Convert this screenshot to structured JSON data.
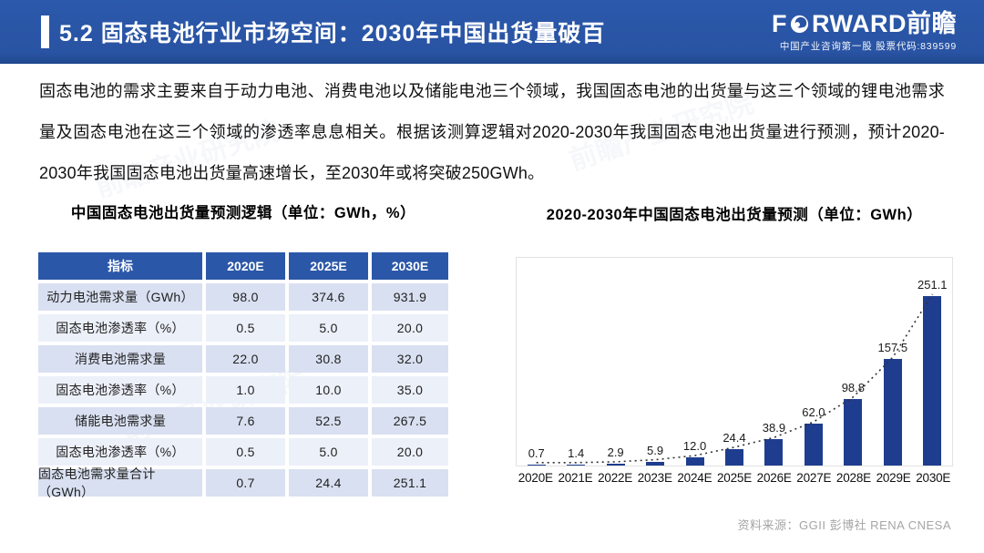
{
  "header": {
    "title": "5.2 固态电池行业市场空间：2030年中国出货量破百",
    "logo": {
      "prefix": "F",
      "suffix": "RWARD前瞻",
      "subtitle": "中国产业咨询第一股 股票代码:839599"
    },
    "bar_blue": "#2953A3"
  },
  "intro": "固态电池的需求主要来自于动力电池、消费电池以及储能电池三个领域，我国固态电池的出货量与这三个领域的锂电池需求量及固态电池在这三个领域的渗透率息息相关。根据该测算逻辑对2020-2030年我国固态电池出货量进行预测，预计2020-2030年我国固态电池出货量高速增长，至2030年或将突破250GWh。",
  "table": {
    "title": "中国固态电池出货量预测逻辑（单位：GWh，%）",
    "headers": [
      "指标",
      "2020E",
      "2025E",
      "2030E"
    ],
    "rows": [
      [
        "动力电池需求量（GWh）",
        "98.0",
        "374.6",
        "931.9"
      ],
      [
        "固态电池渗透率（%）",
        "0.5",
        "5.0",
        "20.0"
      ],
      [
        "消费电池需求量",
        "22.0",
        "30.8",
        "32.0"
      ],
      [
        "固态电池渗透率（%）",
        "1.0",
        "10.0",
        "35.0"
      ],
      [
        "储能电池需求量",
        "7.6",
        "52.5",
        "267.5"
      ],
      [
        "固态电池渗透率（%）",
        "0.5",
        "5.0",
        "20.0"
      ],
      [
        "固态电池需求量合计（GWh）",
        "0.7",
        "24.4",
        "251.1"
      ]
    ],
    "header_color": "#2B57A8",
    "row_dark": "#D9E0F1",
    "row_light": "#ECF0F9"
  },
  "chart_data": {
    "type": "bar",
    "title": "2020-2030年中国固态电池出货量预测（单位：GWh）",
    "categories": [
      "2020E",
      "2021E",
      "2022E",
      "2023E",
      "2024E",
      "2025E",
      "2026E",
      "2027E",
      "2028E",
      "2029E",
      "2030E"
    ],
    "values": [
      0.7,
      1.4,
      2.9,
      5.9,
      12.0,
      24.4,
      38.9,
      62.0,
      98.8,
      157.5,
      251.1
    ],
    "xlabel": "",
    "ylabel": "",
    "ylim": [
      0,
      260
    ],
    "grid": false,
    "legend": "none",
    "data_labels": true,
    "bar_color": "#1E3D8F",
    "trendline": "dotted-through-bar-tops",
    "trendline_color": "#333333"
  },
  "source": "资料来源：GGII 彭博社 RENA CNESA",
  "watermark": "前瞻产业研究院"
}
